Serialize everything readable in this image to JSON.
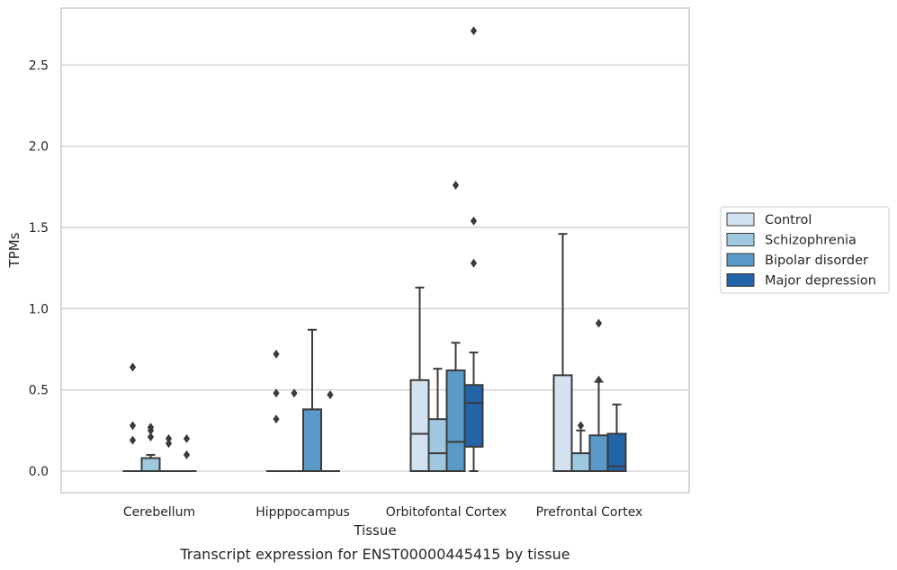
{
  "chart_data": {
    "type": "box",
    "title": "Transcript expression for ENST00000445415 by tissue",
    "xlabel": "Tissue",
    "ylabel": "TPMs",
    "ylim": [
      -0.13,
      2.85
    ],
    "yticks": [
      "0.0",
      "0.5",
      "1.0",
      "1.5",
      "2.0",
      "2.5"
    ],
    "grid": true,
    "legend_position": "right",
    "categories": [
      "Cerebellum",
      "Hipppocampus",
      "Orbitofontal Cortex",
      "Prefrontal Cortex"
    ],
    "series": [
      {
        "name": "Control",
        "color": "#d3e2f1",
        "boxes": [
          {
            "q1": 0,
            "median": 0,
            "q3": 0,
            "whisker_low": 0,
            "whisker_high": 0,
            "outliers": [
              0.64,
              0.28,
              0.19
            ]
          },
          {
            "q1": 0,
            "median": 0,
            "q3": 0,
            "whisker_low": 0,
            "whisker_high": 0,
            "outliers": [
              0.72,
              0.48,
              0.32
            ]
          },
          {
            "q1": 0,
            "median": 0.23,
            "q3": 0.56,
            "whisker_low": 0,
            "whisker_high": 1.13,
            "outliers": []
          },
          {
            "q1": 0,
            "median": 0,
            "q3": 0.59,
            "whisker_low": 0,
            "whisker_high": 1.46,
            "outliers": []
          }
        ]
      },
      {
        "name": "Schizophrenia",
        "color": "#9ec7e0",
        "boxes": [
          {
            "q1": 0,
            "median": 0,
            "q3": 0.08,
            "whisker_low": 0,
            "whisker_high": 0.1,
            "outliers": [
              0.27,
              0.25,
              0.21
            ]
          },
          {
            "q1": 0,
            "median": 0,
            "q3": 0,
            "whisker_low": 0,
            "whisker_high": 0,
            "outliers": [
              0.48
            ]
          },
          {
            "q1": 0,
            "median": 0.11,
            "q3": 0.32,
            "whisker_low": 0,
            "whisker_high": 0.63,
            "outliers": []
          },
          {
            "q1": 0,
            "median": 0,
            "q3": 0.11,
            "whisker_low": 0,
            "whisker_high": 0.25,
            "outliers": [
              0.28
            ]
          }
        ]
      },
      {
        "name": "Bipolar disorder",
        "color": "#5a9ac8",
        "boxes": [
          {
            "q1": 0,
            "median": 0,
            "q3": 0,
            "whisker_low": 0,
            "whisker_high": 0,
            "outliers": [
              0.2,
              0.17
            ]
          },
          {
            "q1": 0,
            "median": 0,
            "q3": 0.38,
            "whisker_low": 0,
            "whisker_high": 0.87,
            "outliers": []
          },
          {
            "q1": 0,
            "median": 0.18,
            "q3": 0.62,
            "whisker_low": 0,
            "whisker_high": 0.79,
            "outliers": [
              1.76
            ]
          },
          {
            "q1": 0,
            "median": 0,
            "q3": 0.22,
            "whisker_low": 0,
            "whisker_high": 0.55,
            "outliers": [
              0.91,
              0.56
            ]
          }
        ]
      },
      {
        "name": "Major depression",
        "color": "#2363a8",
        "boxes": [
          {
            "q1": 0,
            "median": 0,
            "q3": 0,
            "whisker_low": 0,
            "whisker_high": 0,
            "outliers": [
              0.2,
              0.1
            ]
          },
          {
            "q1": 0,
            "median": 0,
            "q3": 0,
            "whisker_low": 0,
            "whisker_high": 0,
            "outliers": [
              0.47
            ]
          },
          {
            "q1": 0.15,
            "median": 0.42,
            "q3": 0.53,
            "whisker_low": 0,
            "whisker_high": 0.73,
            "outliers": [
              2.71,
              1.54,
              1.28
            ]
          },
          {
            "q1": 0,
            "median": 0.03,
            "q3": 0.23,
            "whisker_low": 0,
            "whisker_high": 0.41,
            "outliers": []
          }
        ]
      }
    ]
  }
}
